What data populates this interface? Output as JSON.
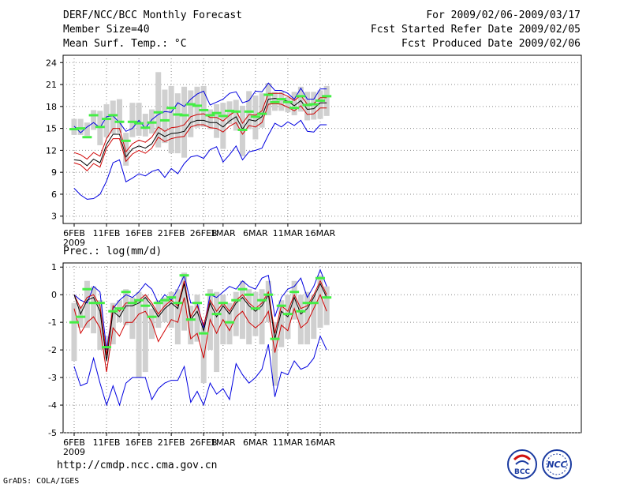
{
  "header": {
    "title": "DERF/NCC/BCC Monthly Forecast",
    "member_size": "Member Size=40",
    "variable_1": "Mean Surf. Temp.: °C",
    "period": "For 2009/02/06-2009/03/17",
    "refer_date": "Fcst Started Refer Date 2009/02/05",
    "produced_date": "Fcst Produced Date 2009/02/06"
  },
  "footer": {
    "url": "http://cmdp.ncc.cma.gov.cn",
    "credit": "GrADS: COLA/IGES",
    "logo_bcc": "BCC",
    "logo_ncc": "NCC"
  },
  "colors": {
    "mean": "#000000",
    "inner_spread": "#d00000",
    "outer_spread": "#0000e0",
    "observed": "#44ee44",
    "box": "#d0d0d0",
    "grid": "#888888"
  },
  "chart_data": [
    {
      "type": "line",
      "title": "Mean Surf. Temp.: °C",
      "ylim": [
        2,
        25
      ],
      "yticks": [
        3,
        6,
        9,
        12,
        15,
        18,
        21,
        24
      ],
      "xlim": [
        0,
        40
      ],
      "xticks": [
        {
          "x": 0,
          "label": "6FEB"
        },
        {
          "x": 5,
          "label": "11FEB"
        },
        {
          "x": 10,
          "label": "16FEB"
        },
        {
          "x": 15,
          "label": "21FEB"
        },
        {
          "x": 20,
          "label": "26FEB"
        },
        {
          "x": 23,
          "label": "1MAR"
        },
        {
          "x": 28,
          "label": "6MAR"
        },
        {
          "x": 33,
          "label": "11MAR"
        },
        {
          "x": 38,
          "label": "16MAR"
        }
      ],
      "year_label": "2009",
      "series": [
        {
          "name": "max",
          "values": [
            6.8,
            5.9,
            5.3,
            5.4,
            6.0,
            7.8,
            10.3,
            10.7,
            7.7,
            8.2,
            8.8,
            8.5,
            9.1,
            9.4,
            8.3,
            9.5,
            8.8,
            10.2,
            11.1,
            11.3,
            10.9,
            12.1,
            12.5,
            10.4,
            11.4,
            12.6,
            10.7,
            11.8,
            12.0,
            12.3,
            14.1,
            15.7,
            15.2,
            15.9,
            15.4,
            16.1,
            14.6,
            14.5,
            15.5,
            15.5
          ]
        },
        {
          "name": "upper",
          "values": [
            10.3,
            10.0,
            9.2,
            10.2,
            9.7,
            12.3,
            13.6,
            13.6,
            10.5,
            11.5,
            12.0,
            11.6,
            12.3,
            13.8,
            13.2,
            13.6,
            13.8,
            13.9,
            15.2,
            15.5,
            15.5,
            15.1,
            15.0,
            14.5,
            15.3,
            15.8,
            14.2,
            15.4,
            15.2,
            15.8,
            18.3,
            18.4,
            18.3,
            17.9,
            17.4,
            18.1,
            16.9,
            17.0,
            17.8,
            17.8
          ]
        },
        {
          "name": "mean",
          "values": [
            10.7,
            10.6,
            9.9,
            10.8,
            10.3,
            12.8,
            14.2,
            14.2,
            11.1,
            12.2,
            12.6,
            12.3,
            12.9,
            14.4,
            13.9,
            14.3,
            14.4,
            14.6,
            15.8,
            16.1,
            16.1,
            15.8,
            15.8,
            15.2,
            16.0,
            16.6,
            14.9,
            16.2,
            16.0,
            16.6,
            19.0,
            19.1,
            19.0,
            18.7,
            18.1,
            18.8,
            17.6,
            17.7,
            18.5,
            18.5
          ]
        },
        {
          "name": "lower",
          "values": [
            11.7,
            11.4,
            10.8,
            11.7,
            11.2,
            13.6,
            15.0,
            15.0,
            11.8,
            12.9,
            13.4,
            13.1,
            13.8,
            15.2,
            14.6,
            15.1,
            15.2,
            15.5,
            16.6,
            16.9,
            17.0,
            16.5,
            16.5,
            16.0,
            16.8,
            17.4,
            15.7,
            16.9,
            16.8,
            17.4,
            19.8,
            19.8,
            19.8,
            19.4,
            18.8,
            19.5,
            18.3,
            18.4,
            19.2,
            19.2
          ]
        },
        {
          "name": "min",
          "values": [
            15.3,
            14.4,
            15.2,
            15.8,
            15.1,
            16.6,
            16.7,
            15.8,
            14.6,
            15.0,
            16.1,
            15.0,
            16.2,
            16.9,
            17.3,
            17.2,
            18.5,
            18.0,
            19.0,
            19.7,
            20.1,
            18.2,
            18.6,
            19.0,
            19.8,
            20.0,
            18.5,
            18.8,
            20.1,
            20.0,
            21.2,
            20.2,
            20.2,
            19.8,
            19.0,
            20.5,
            19.0,
            19.0,
            20.4,
            20.4
          ]
        },
        {
          "name": "observed",
          "values": [
            14.9,
            15.0,
            13.8,
            16.8,
            15.2,
            16.3,
            16.8,
            15.9,
            13.3,
            15.9,
            15.7,
            15.1,
            15.8,
            17.2,
            16.1,
            17.8,
            16.9,
            16.8,
            18.3,
            18.1,
            17.5,
            16.8,
            17.1,
            16.7,
            17.4,
            17.3,
            14.8,
            17.3,
            16.6,
            17.0,
            19.6,
            18.6,
            19.0,
            18.6,
            17.8,
            19.4,
            18.2,
            18.3,
            18.8,
            19.4
          ]
        },
        {
          "name": "box_low",
          "values": [
            14.1,
            14.1,
            14.0,
            14.8,
            12.7,
            13.8,
            14.3,
            14.4,
            9.9,
            13.8,
            14.0,
            13.9,
            14.3,
            12.4,
            13.0,
            11.6,
            11.6,
            11.0,
            13.8,
            15.1,
            15.2,
            14.9,
            13.7,
            12.2,
            15.6,
            14.7,
            11.2,
            14.9,
            13.5,
            15.1,
            16.8,
            17.4,
            17.4,
            17.2,
            16.8,
            17.3,
            16.1,
            16.2,
            16.3,
            16.7
          ]
        },
        {
          "name": "box_high",
          "values": [
            16.3,
            16.3,
            15.8,
            17.5,
            17.4,
            18.3,
            18.8,
            19.0,
            14.4,
            18.5,
            18.5,
            17.0,
            17.6,
            22.7,
            20.3,
            20.8,
            19.8,
            20.7,
            20.2,
            20.7,
            20.8,
            17.6,
            18.3,
            18.5,
            18.7,
            18.9,
            18.1,
            20.1,
            19.5,
            19.8,
            21.2,
            20.0,
            20.0,
            19.3,
            20.0,
            20.7,
            20.0,
            20.0,
            20.2,
            20.8
          ]
        }
      ]
    },
    {
      "type": "line",
      "title": "Prec.: log(mm/d)",
      "ylim": [
        -5,
        1.15
      ],
      "yticks": [
        -5,
        -4,
        -3,
        -2,
        -1,
        0,
        1
      ],
      "xlim": [
        0,
        40
      ],
      "xticks": [
        {
          "x": 0,
          "label": "6FEB"
        },
        {
          "x": 5,
          "label": "11FEB"
        },
        {
          "x": 10,
          "label": "16FEB"
        },
        {
          "x": 15,
          "label": "21FEB"
        },
        {
          "x": 20,
          "label": "26FEB"
        },
        {
          "x": 23,
          "label": "1MAR"
        },
        {
          "x": 28,
          "label": "6MAR"
        },
        {
          "x": 33,
          "label": "11MAR"
        },
        {
          "x": 38,
          "label": "16MAR"
        }
      ],
      "year_label": "2009",
      "series": [
        {
          "name": "max",
          "values": [
            0.0,
            -0.2,
            -0.3,
            0.3,
            0.1,
            -2.0,
            -0.5,
            -0.2,
            0.0,
            -0.1,
            0.1,
            0.4,
            0.2,
            -0.3,
            0.0,
            -0.2,
            0.2,
            0.7,
            -0.3,
            -0.3,
            -1.2,
            0.0,
            -0.1,
            0.1,
            0.3,
            0.2,
            0.5,
            0.3,
            0.2,
            0.6,
            0.7,
            -0.8,
            -0.1,
            0.2,
            0.3,
            0.6,
            -0.1,
            0.3,
            0.9,
            0.3
          ]
        },
        {
          "name": "upper",
          "values": [
            0.0,
            -0.5,
            -0.1,
            0.0,
            -0.4,
            -2.2,
            -0.4,
            -0.6,
            -0.3,
            -0.3,
            -0.2,
            0.0,
            -0.3,
            -0.7,
            -0.4,
            -0.2,
            -0.4,
            0.5,
            -0.8,
            -0.4,
            -1.1,
            -0.2,
            -0.6,
            -0.3,
            -0.6,
            -0.2,
            0.0,
            -0.3,
            -0.5,
            -0.3,
            0.1,
            -1.4,
            -0.4,
            -0.6,
            0.0,
            -0.5,
            -0.4,
            0.0,
            0.5,
            0.0
          ]
        },
        {
          "name": "mean",
          "values": [
            0.0,
            -0.7,
            -0.2,
            -0.1,
            -0.6,
            -2.4,
            -0.6,
            -0.8,
            -0.4,
            -0.4,
            -0.3,
            -0.1,
            -0.4,
            -0.8,
            -0.5,
            -0.3,
            -0.5,
            0.4,
            -0.9,
            -0.6,
            -1.3,
            -0.3,
            -0.8,
            -0.4,
            -0.7,
            -0.3,
            -0.1,
            -0.4,
            -0.6,
            -0.4,
            0.0,
            -1.6,
            -0.6,
            -0.8,
            -0.1,
            -0.7,
            -0.5,
            -0.1,
            0.4,
            -0.1
          ]
        },
        {
          "name": "lower",
          "values": [
            -0.5,
            -1.4,
            -1.0,
            -0.8,
            -1.2,
            -2.8,
            -1.2,
            -1.5,
            -1.0,
            -1.0,
            -0.7,
            -0.6,
            -1.0,
            -1.7,
            -1.3,
            -0.9,
            -1.0,
            -0.1,
            -1.6,
            -1.4,
            -2.3,
            -0.9,
            -1.4,
            -0.9,
            -1.3,
            -0.8,
            -0.6,
            -1.0,
            -1.2,
            -1.0,
            -0.6,
            -2.1,
            -1.1,
            -1.3,
            -0.5,
            -1.2,
            -1.0,
            -0.5,
            0.0,
            -0.6
          ]
        },
        {
          "name": "min",
          "values": [
            -2.6,
            -3.3,
            -3.2,
            -2.3,
            -3.2,
            -4.0,
            -3.3,
            -4.0,
            -3.2,
            -3.0,
            -3.0,
            -3.0,
            -3.8,
            -3.4,
            -3.2,
            -3.1,
            -3.1,
            -2.6,
            -3.9,
            -3.5,
            -4.0,
            -3.2,
            -3.6,
            -3.4,
            -3.8,
            -2.5,
            -2.9,
            -3.2,
            -3.0,
            -2.7,
            -1.8,
            -3.7,
            -2.8,
            -2.9,
            -2.4,
            -2.7,
            -2.6,
            -2.3,
            -1.5,
            -2.0
          ]
        },
        {
          "name": "observed",
          "values": [
            -1.0,
            -0.8,
            0.2,
            -0.3,
            -0.3,
            -1.9,
            -0.6,
            -0.5,
            0.1,
            -0.3,
            -0.2,
            -0.4,
            -0.8,
            -0.3,
            -0.2,
            -0.1,
            -0.3,
            0.7,
            -0.9,
            -0.3,
            -1.4,
            0.0,
            -0.7,
            -0.3,
            -1.0,
            -0.2,
            0.2,
            0.0,
            -0.5,
            -0.2,
            0.0,
            -1.6,
            -0.4,
            -0.7,
            0.1,
            -0.6,
            -0.3,
            -0.3,
            0.6,
            -0.1
          ]
        },
        {
          "name": "box_low",
          "values": [
            -2.4,
            -1.2,
            -1.2,
            -1.4,
            -2.0,
            -2.3,
            -1.8,
            -1.0,
            -1.1,
            -1.6,
            -3.0,
            -2.8,
            -1.6,
            -1.2,
            -1.0,
            -1.2,
            -1.8,
            -1.3,
            -1.8,
            -1.7,
            -3.2,
            -2.0,
            -2.8,
            -1.8,
            -1.8,
            -1.5,
            -1.6,
            -1.8,
            -1.5,
            -1.8,
            -1.0,
            -3.3,
            -1.9,
            -1.6,
            -0.9,
            -1.8,
            -1.8,
            -1.6,
            -1.2,
            -1.1
          ]
        },
        {
          "name": "box_high",
          "values": [
            -0.3,
            -0.4,
            0.5,
            0.3,
            -0.2,
            -1.5,
            -0.3,
            -0.2,
            0.2,
            -0.1,
            0.1,
            0.0,
            -0.5,
            -0.2,
            -0.1,
            0.1,
            0.2,
            0.8,
            -0.4,
            0.0,
            -1.0,
            0.2,
            0.1,
            0.0,
            -0.3,
            0.1,
            0.5,
            0.2,
            0.1,
            0.2,
            0.5,
            -1.0,
            -0.2,
            0.0,
            0.5,
            0.0,
            0.1,
            0.0,
            0.7,
            0.3
          ]
        }
      ]
    }
  ]
}
